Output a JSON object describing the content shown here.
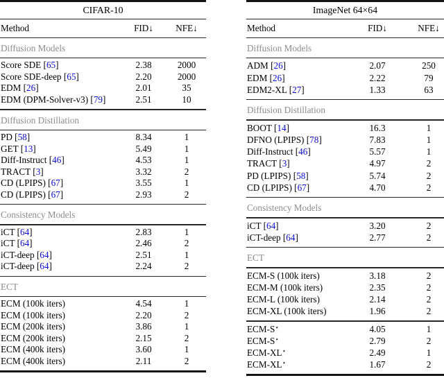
{
  "colors": {
    "citation_blue": "#0b0bd6",
    "section_gray": "#8c8c8c",
    "rule_dark": "#141414",
    "text_black": "#000000",
    "background": "#ffffff"
  },
  "tables": [
    {
      "id": "cifar10",
      "title": "CIFAR-10",
      "columns": {
        "method": "Method",
        "fid": "FID↓",
        "nfe": "NFE↓"
      },
      "sections": [
        {
          "label": "Diffusion Models",
          "groups": [
            [
              {
                "method": "Score SDE",
                "cite": "65",
                "fid": "2.38",
                "nfe": "2000"
              },
              {
                "method": "Score SDE-deep",
                "cite": "65",
                "fid": "2.20",
                "nfe": "2000"
              },
              {
                "method": "EDM",
                "cite": "26",
                "fid": "2.01",
                "nfe": "35"
              },
              {
                "method": "EDM (DPM-Solver-v3)",
                "cite": "79",
                "fid": "2.51",
                "nfe": "10"
              }
            ]
          ]
        },
        {
          "label": "Diffusion Distillation",
          "groups": [
            [
              {
                "method": "PD",
                "cite": "58",
                "fid": "8.34",
                "nfe": "1"
              },
              {
                "method": "GET",
                "cite": "13",
                "fid": "5.49",
                "nfe": "1"
              },
              {
                "method": "Diff-Instruct",
                "cite": "46",
                "fid": "4.53",
                "nfe": "1"
              },
              {
                "method": "TRACT",
                "cite": "3",
                "fid": "3.32",
                "nfe": "2"
              },
              {
                "method": "CD (LPIPS)",
                "cite": "67",
                "fid": "3.55",
                "nfe": "1"
              },
              {
                "method": "CD (LPIPS)",
                "cite": "67",
                "fid": "2.93",
                "nfe": "2"
              }
            ]
          ]
        },
        {
          "label": "Consistency Models",
          "groups": [
            [
              {
                "method": "iCT",
                "cite": "64",
                "fid": "2.83",
                "nfe": "1"
              },
              {
                "method": "iCT",
                "cite": "64",
                "fid": "2.46",
                "nfe": "2"
              },
              {
                "method": "iCT-deep",
                "cite": "64",
                "fid": "2.51",
                "nfe": "1"
              },
              {
                "method": "iCT-deep",
                "cite": "64",
                "fid": "2.24",
                "nfe": "2"
              }
            ]
          ]
        },
        {
          "label": "ECT",
          "groups": [
            [
              {
                "method": "ECM (100k iters)",
                "fid": "4.54",
                "nfe": "1"
              },
              {
                "method": "ECM (100k iters)",
                "fid": "2.20",
                "nfe": "2"
              },
              {
                "method": "ECM (200k iters)",
                "fid": "3.86",
                "nfe": "1"
              },
              {
                "method": "ECM (200k iters)",
                "fid": "2.15",
                "nfe": "2"
              },
              {
                "method": "ECM (400k iters)",
                "fid": "3.60",
                "nfe": "1"
              },
              {
                "method": "ECM (400k iters)",
                "fid": "2.11",
                "nfe": "2"
              }
            ]
          ]
        }
      ]
    },
    {
      "id": "imagenet64",
      "title": "ImageNet 64×64",
      "columns": {
        "method": "Method",
        "fid": "FID↓",
        "nfe": "NFE↓"
      },
      "sections": [
        {
          "label": "Diffusion Models",
          "groups": [
            [
              {
                "method": "ADM",
                "cite": "26",
                "fid": "2.07",
                "nfe": "250"
              },
              {
                "method": "EDM",
                "cite": "26",
                "fid": "2.22",
                "nfe": "79"
              },
              {
                "method": "EDM2-XL",
                "cite": "27",
                "fid": "1.33",
                "nfe": "63"
              }
            ]
          ]
        },
        {
          "label": "Diffusion Distillation",
          "groups": [
            [
              {
                "method": "BOOT",
                "cite": "14",
                "fid": "16.3",
                "nfe": "1"
              },
              {
                "method": "DFNO (LPIPS)",
                "cite": "78",
                "fid": "7.83",
                "nfe": "1"
              },
              {
                "method": "Diff-Instruct",
                "cite": "46",
                "fid": "5.57",
                "nfe": "1"
              },
              {
                "method": "TRACT",
                "cite": "3",
                "fid": "4.97",
                "nfe": "2"
              },
              {
                "method": "PD (LPIPS)",
                "cite": "58",
                "fid": "5.74",
                "nfe": "2"
              },
              {
                "method": "CD (LPIPS)",
                "cite": "67",
                "fid": "4.70",
                "nfe": "2"
              }
            ]
          ]
        },
        {
          "label": "Consistency Models",
          "groups": [
            [
              {
                "method": "iCT",
                "cite": "64",
                "fid": "3.20",
                "nfe": "2"
              },
              {
                "method": "iCT-deep",
                "cite": "64",
                "fid": "2.77",
                "nfe": "2"
              }
            ]
          ]
        },
        {
          "label": "ECT",
          "groups": [
            [
              {
                "method": "ECM-S (100k iters)",
                "fid": "3.18",
                "nfe": "2"
              },
              {
                "method": "ECM-M (100k iters)",
                "fid": "2.35",
                "nfe": "2"
              },
              {
                "method": "ECM-L (100k iters)",
                "fid": "2.14",
                "nfe": "2"
              },
              {
                "method": "ECM-XL (100k iters)",
                "fid": "1.96",
                "nfe": "2"
              }
            ],
            [
              {
                "method": "ECM-S",
                "star": "⋆",
                "fid": "4.05",
                "nfe": "1"
              },
              {
                "method": "ECM-S",
                "star": "⋆",
                "fid": "2.79",
                "nfe": "2"
              },
              {
                "method": "ECM-XL",
                "star": "⋆",
                "fid": "2.49",
                "nfe": "1"
              },
              {
                "method": "ECM-XL",
                "star": "⋆",
                "fid": "1.67",
                "nfe": "2"
              }
            ]
          ]
        }
      ]
    }
  ]
}
